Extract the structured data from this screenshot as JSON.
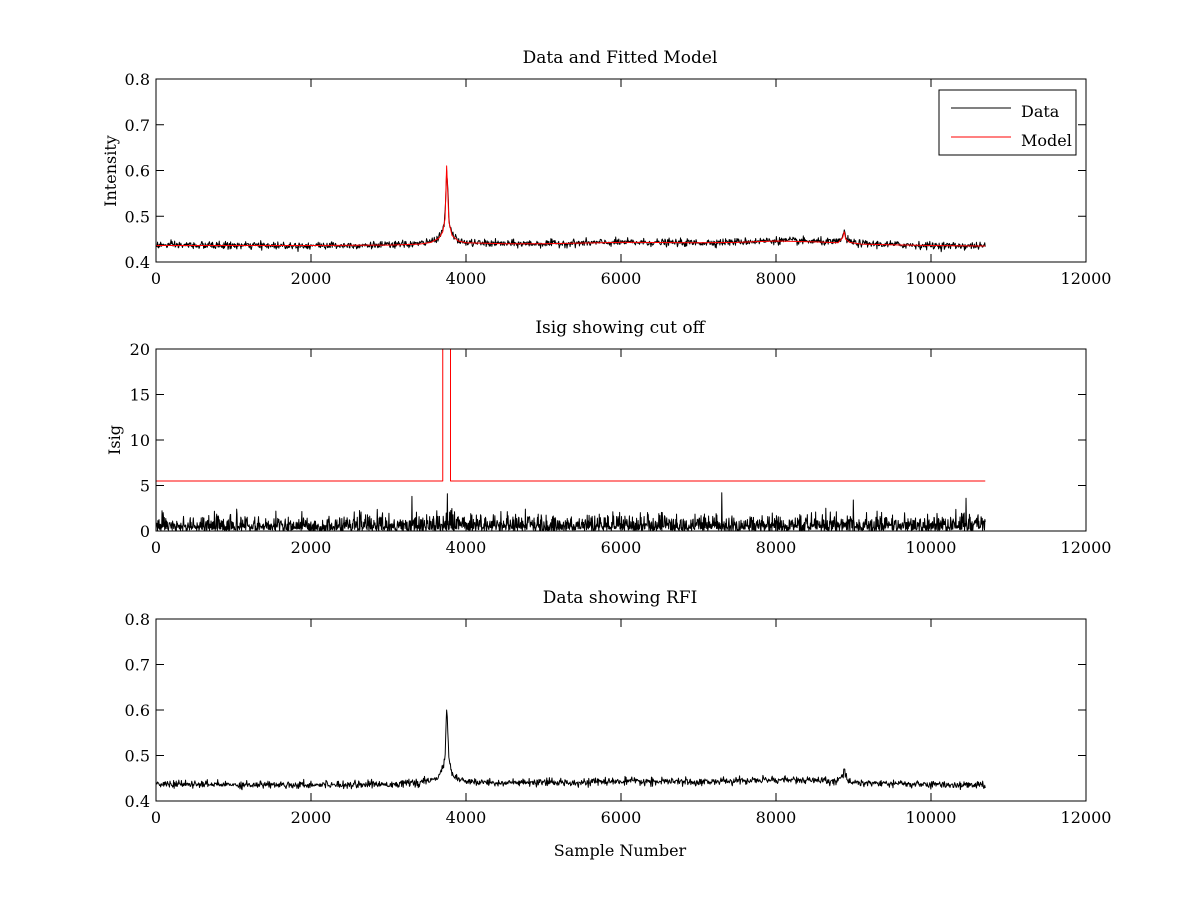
{
  "figure": {
    "background": "#ffffff"
  },
  "colors": {
    "data": "#000000",
    "model": "#ff0000",
    "axes": "#000000"
  },
  "chart_data": [
    {
      "type": "line",
      "title": "Data and Fitted Model",
      "xlabel": "",
      "ylabel": "Intensity",
      "xlim": [
        0,
        12000
      ],
      "ylim": [
        0.4,
        0.8
      ],
      "xticks": [
        0,
        2000,
        4000,
        6000,
        8000,
        10000,
        12000
      ],
      "yticks": [
        0.4,
        0.5,
        0.6,
        0.7,
        0.8
      ],
      "ytick_labels": [
        "0.4",
        "0.5",
        "0.6",
        "0.7",
        "0.8"
      ],
      "grid": false,
      "legend": {
        "position": "top-right",
        "entries": [
          "Data",
          "Model"
        ]
      },
      "series": [
        {
          "name": "Data",
          "color": "#000000",
          "noise": 0.004,
          "x": [
            0,
            1000,
            2000,
            3000,
            3400,
            3550,
            3650,
            3700,
            3730,
            3750,
            3765,
            3780,
            3820,
            3900,
            4000,
            4500,
            5000,
            6000,
            7000,
            7500,
            8000,
            8500,
            8800,
            8860,
            8880,
            8900,
            8950,
            9100,
            10000,
            10700
          ],
          "y": [
            0.437,
            0.436,
            0.436,
            0.437,
            0.44,
            0.445,
            0.455,
            0.47,
            0.5,
            0.6,
            0.56,
            0.49,
            0.46,
            0.447,
            0.442,
            0.44,
            0.44,
            0.443,
            0.442,
            0.444,
            0.447,
            0.445,
            0.443,
            0.455,
            0.468,
            0.452,
            0.444,
            0.44,
            0.436,
            0.435
          ]
        },
        {
          "name": "Model",
          "color": "#ff0000",
          "noise": 0,
          "x": [
            0,
            1000,
            2000,
            3000,
            3400,
            3550,
            3650,
            3700,
            3730,
            3750,
            3765,
            3780,
            3820,
            3900,
            4000,
            4500,
            5000,
            6000,
            7000,
            7500,
            8000,
            8500,
            8800,
            8860,
            8880,
            8900,
            8950,
            9100,
            10000,
            10700
          ],
          "y": [
            0.436,
            0.436,
            0.436,
            0.437,
            0.439,
            0.443,
            0.452,
            0.466,
            0.495,
            0.61,
            0.55,
            0.487,
            0.458,
            0.446,
            0.442,
            0.44,
            0.44,
            0.443,
            0.442,
            0.443,
            0.446,
            0.444,
            0.442,
            0.453,
            0.466,
            0.45,
            0.443,
            0.439,
            0.436,
            0.435
          ]
        }
      ]
    },
    {
      "type": "line",
      "title": "Isig showing cut off",
      "xlabel": "",
      "ylabel": "Isig",
      "xlim": [
        0,
        12000
      ],
      "ylim": [
        0,
        20
      ],
      "xticks": [
        0,
        2000,
        4000,
        6000,
        8000,
        10000,
        12000
      ],
      "yticks": [
        0,
        5,
        10,
        15,
        20
      ],
      "ytick_labels": [
        "0",
        "5",
        "10",
        "15",
        "20"
      ],
      "grid": false,
      "series": [
        {
          "color": "#000000",
          "style": "noise",
          "x_range": [
            0,
            10700
          ],
          "typical_max": 2.5,
          "peaks": [
            [
              3300,
              3.8
            ],
            [
              3760,
              4.1
            ],
            [
              7300,
              4.2
            ],
            [
              9000,
              3.4
            ],
            [
              10450,
              3.6
            ]
          ]
        },
        {
          "color": "#ff0000",
          "x": [
            0,
            3700,
            3700,
            3800,
            3800,
            10700
          ],
          "y": [
            5.5,
            5.5,
            20,
            20,
            5.5,
            5.5
          ]
        }
      ]
    },
    {
      "type": "line",
      "title": "Data showing RFI",
      "xlabel": "Sample Number",
      "ylabel": "",
      "xlim": [
        0,
        12000
      ],
      "ylim": [
        0.4,
        0.8
      ],
      "xticks": [
        0,
        2000,
        4000,
        6000,
        8000,
        10000,
        12000
      ],
      "yticks": [
        0.4,
        0.5,
        0.6,
        0.7,
        0.8
      ],
      "ytick_labels": [
        "0.4",
        "0.5",
        "0.6",
        "0.7",
        "0.8"
      ],
      "grid": false,
      "series": [
        {
          "color": "#000000",
          "noise": 0.004,
          "x": [
            0,
            1000,
            2000,
            3000,
            3400,
            3550,
            3650,
            3700,
            3730,
            3750,
            3765,
            3780,
            3820,
            3900,
            4000,
            4500,
            5000,
            6000,
            7000,
            7500,
            8000,
            8500,
            8800,
            8860,
            8880,
            8900,
            8950,
            9100,
            10000,
            10700
          ],
          "y": [
            0.437,
            0.436,
            0.436,
            0.437,
            0.44,
            0.445,
            0.455,
            0.47,
            0.5,
            0.6,
            0.56,
            0.49,
            0.46,
            0.447,
            0.442,
            0.44,
            0.44,
            0.443,
            0.442,
            0.444,
            0.447,
            0.445,
            0.443,
            0.455,
            0.468,
            0.452,
            0.444,
            0.44,
            0.436,
            0.435
          ]
        }
      ]
    }
  ]
}
